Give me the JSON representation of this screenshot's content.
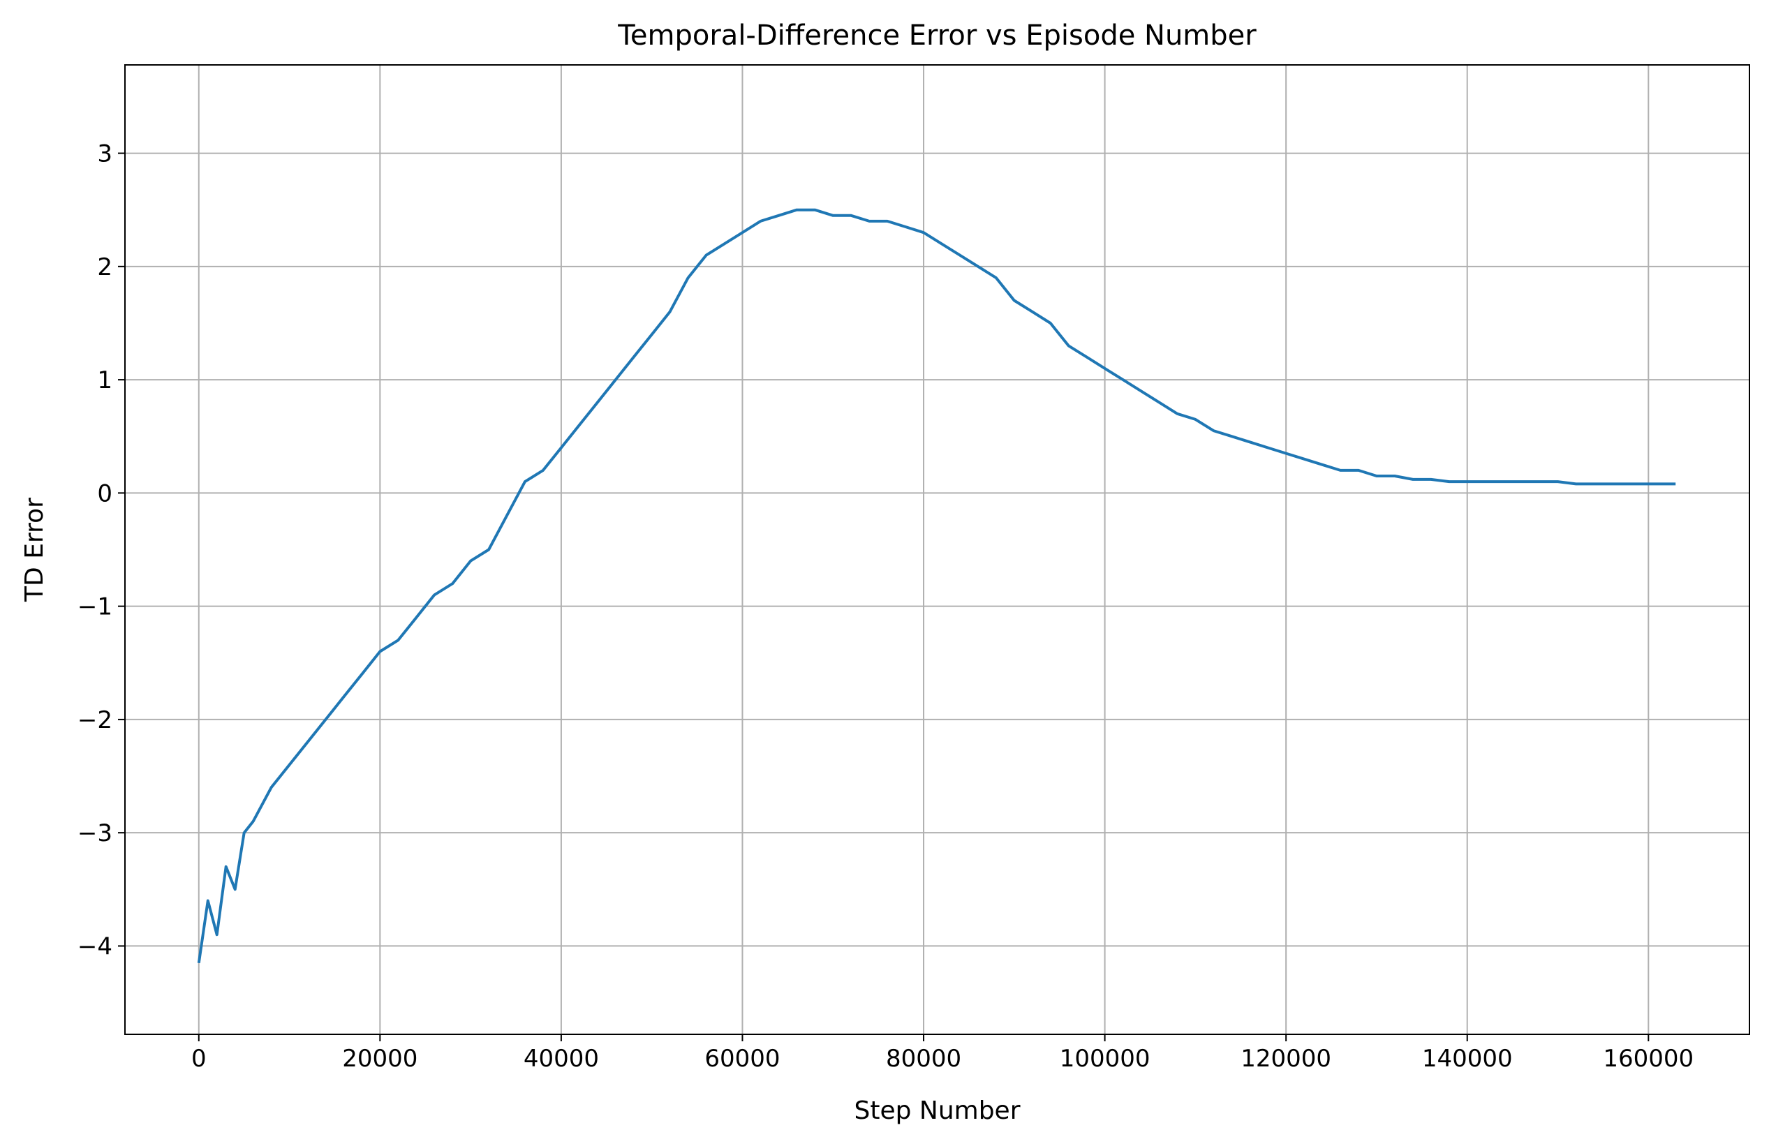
{
  "chart_data": {
    "type": "line",
    "title": "Temporal-Difference Error vs Episode Number",
    "xlabel": "Step Number",
    "ylabel": "TD Error",
    "xlim": [
      -8150,
      171150
    ],
    "ylim": [
      -4.78,
      3.78
    ],
    "xticks": [
      0,
      20000,
      40000,
      60000,
      80000,
      100000,
      120000,
      140000,
      160000
    ],
    "xtick_labels": [
      "0",
      "20000",
      "40000",
      "60000",
      "80000",
      "100000",
      "120000",
      "140000",
      "160000"
    ],
    "yticks": [
      -4,
      -3,
      -2,
      -1,
      0,
      1,
      2,
      3
    ],
    "ytick_labels": [
      "−4",
      "−3",
      "−2",
      "−1",
      "0",
      "1",
      "2",
      "3"
    ],
    "grid": true,
    "legend": "none",
    "series": [
      {
        "color": "#1f77b4",
        "x": [
          0,
          1000,
          2000,
          3000,
          4000,
          5000,
          6000,
          8000,
          10000,
          12000,
          14000,
          16000,
          18000,
          20000,
          22000,
          24000,
          26000,
          28000,
          30000,
          32000,
          34000,
          36000,
          38000,
          40000,
          42000,
          44000,
          46000,
          48000,
          50000,
          52000,
          54000,
          56000,
          58000,
          60000,
          62000,
          64000,
          66000,
          68000,
          70000,
          72000,
          74000,
          76000,
          78000,
          80000,
          82000,
          84000,
          86000,
          88000,
          90000,
          92000,
          94000,
          96000,
          98000,
          100000,
          102000,
          104000,
          106000,
          108000,
          110000,
          112000,
          114000,
          116000,
          118000,
          120000,
          122000,
          124000,
          126000,
          128000,
          130000,
          132000,
          134000,
          136000,
          138000,
          140000,
          142000,
          144000,
          146000,
          148000,
          150000,
          152000,
          154000,
          156000,
          158000,
          160000,
          162000,
          163000
        ],
        "y": [
          -4.15,
          -3.6,
          -3.9,
          -3.3,
          -3.5,
          -3.0,
          -2.9,
          -2.6,
          -2.4,
          -2.2,
          -2.0,
          -1.8,
          -1.6,
          -1.4,
          -1.3,
          -1.1,
          -0.9,
          -0.8,
          -0.6,
          -0.5,
          -0.2,
          0.1,
          0.2,
          0.4,
          0.6,
          0.8,
          1.0,
          1.2,
          1.4,
          1.6,
          1.9,
          2.1,
          2.2,
          2.3,
          2.4,
          2.45,
          2.5,
          2.5,
          2.45,
          2.45,
          2.4,
          2.4,
          2.35,
          2.3,
          2.2,
          2.1,
          2.0,
          1.9,
          1.7,
          1.6,
          1.5,
          1.3,
          1.2,
          1.1,
          1.0,
          0.9,
          0.8,
          0.7,
          0.65,
          0.55,
          0.5,
          0.45,
          0.4,
          0.35,
          0.3,
          0.25,
          0.2,
          0.2,
          0.15,
          0.15,
          0.12,
          0.12,
          0.1,
          0.1,
          0.1,
          0.1,
          0.1,
          0.1,
          0.1,
          0.08,
          0.08,
          0.08,
          0.08,
          0.08,
          0.08,
          0.08
        ]
      }
    ]
  }
}
